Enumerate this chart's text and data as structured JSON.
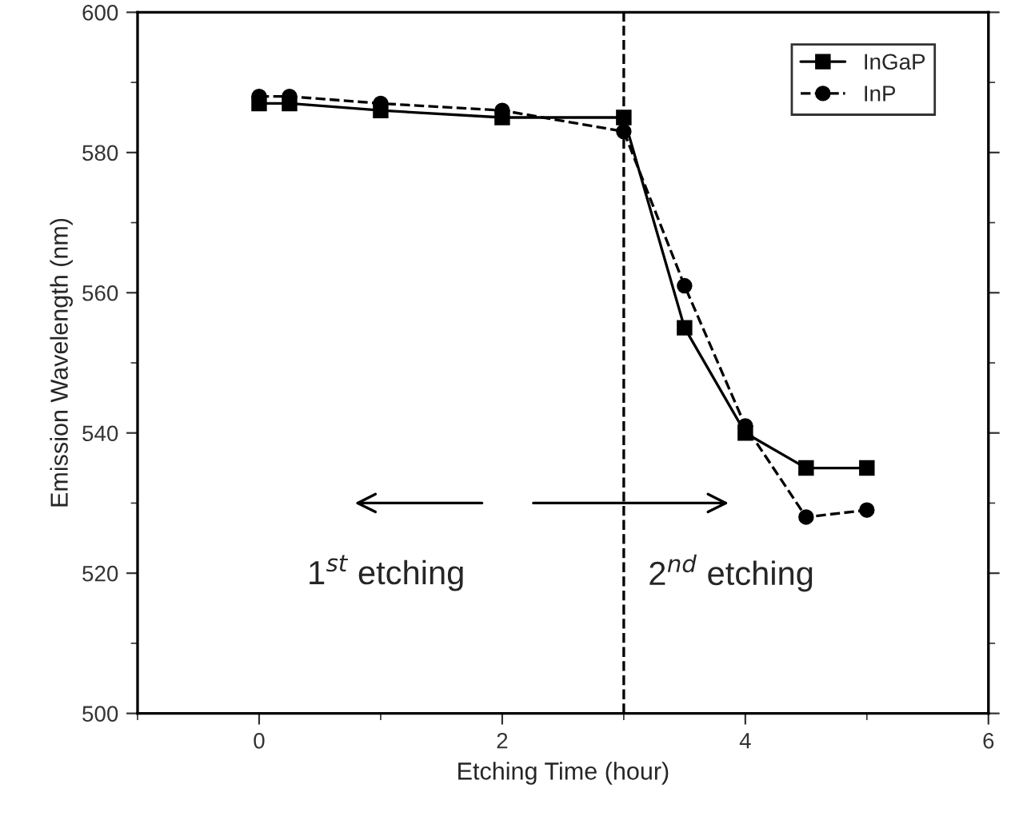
{
  "chart_data": {
    "type": "line",
    "xlabel": "Etching Time (hour)",
    "ylabel": "Emission Wavelength (nm)",
    "xlim": [
      -1,
      6
    ],
    "xticks": [
      0,
      2,
      4,
      6
    ],
    "ylim": [
      500,
      600
    ],
    "yticks": [
      500,
      520,
      540,
      560,
      580,
      600
    ],
    "x": [
      0,
      0.25,
      1,
      2,
      3,
      3.5,
      4,
      4.5,
      5
    ],
    "series": [
      {
        "name": "InGaP",
        "color": "#000000",
        "marker": "square",
        "line_style": "solid",
        "values": [
          587,
          587,
          586,
          585,
          585,
          555,
          540,
          535,
          535
        ]
      },
      {
        "name": "InP",
        "color": "#000000",
        "marker": "circle",
        "line_style": "dashed",
        "values": [
          588,
          588,
          587,
          586,
          583,
          561,
          541,
          528,
          529
        ]
      }
    ],
    "ref_lines": [
      {
        "axis": "x",
        "value": 3,
        "label": null,
        "color": "#000000",
        "line_style": "dashed"
      }
    ],
    "annotations": [
      "1$^{st}$ etching",
      "2$^{nd}$ etching"
    ],
    "legend": "top right",
    "grid": false
  }
}
